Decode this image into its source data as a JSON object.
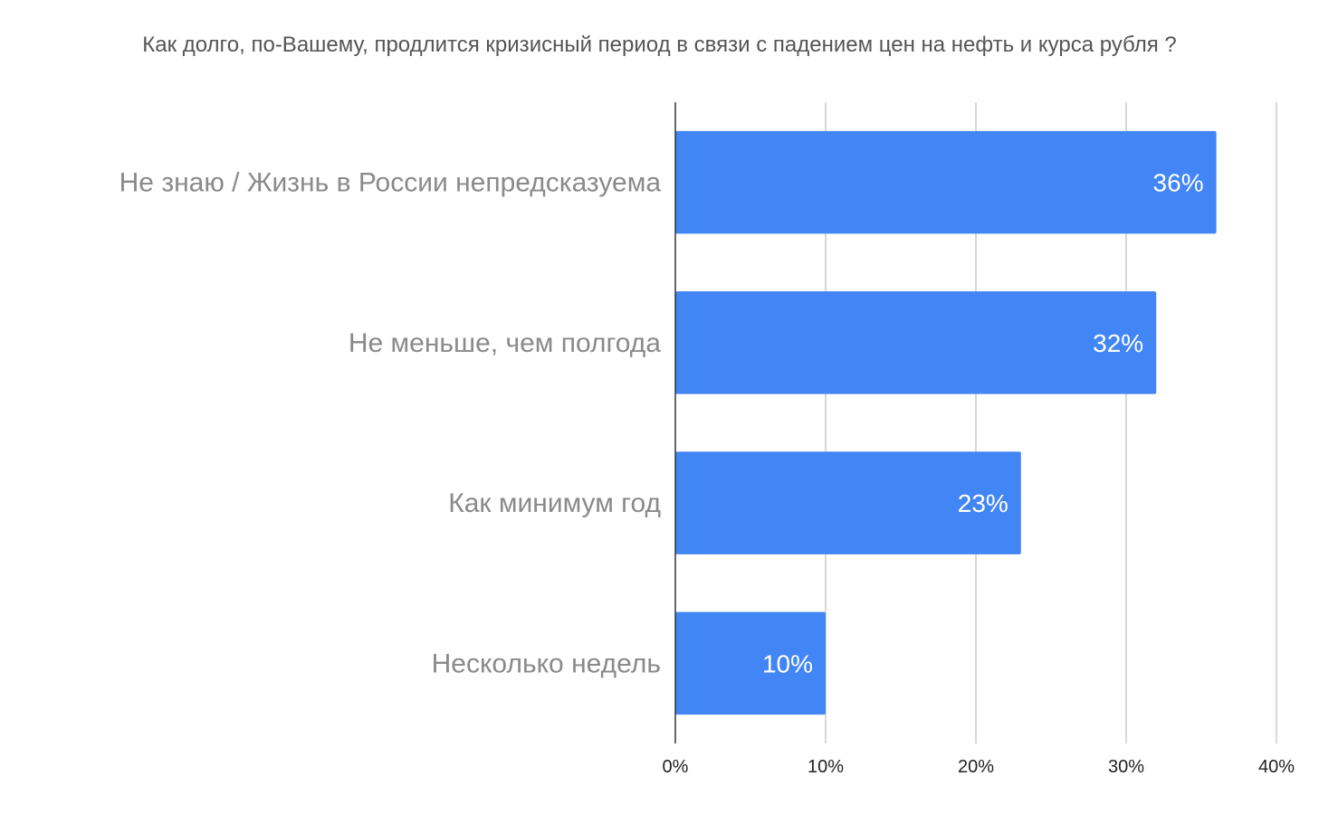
{
  "chart_data": {
    "type": "bar",
    "orientation": "horizontal",
    "title": "Как долго, по-Вашему, продлится кризисный период в связи с падением цен на нефть и курса рубля ?",
    "categories": [
      "Не знаю / Жизнь в России непредсказуема",
      "Не меньше, чем полгода",
      "Как минимум год",
      "Несколько недель"
    ],
    "values": [
      36,
      32,
      23,
      10
    ],
    "data_labels": [
      "36%",
      "32%",
      "23%",
      "10%"
    ],
    "xlim": [
      0,
      40
    ],
    "x_ticks": [
      "0%",
      "10%",
      "20%",
      "30%",
      "40%"
    ],
    "grid": true,
    "legend": "none",
    "bar_color": "#4285f4"
  }
}
